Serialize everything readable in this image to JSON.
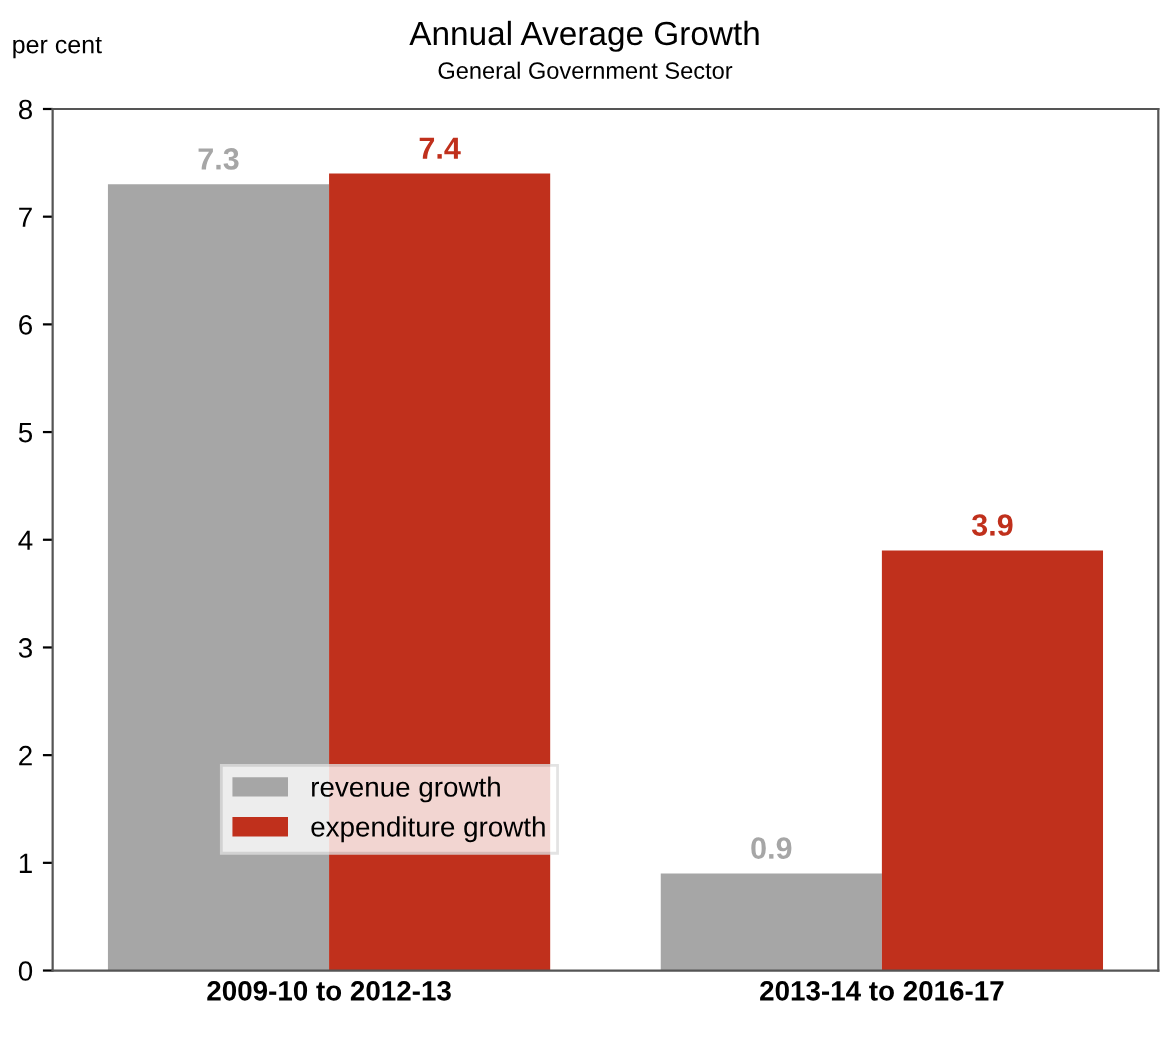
{
  "chart_data": {
    "type": "bar",
    "title": "Annual Average Growth",
    "subtitle": "General Government Sector",
    "ylabel": "per cent",
    "categories": [
      "2009-10 to 2012-13",
      "2013-14 to 2016-17"
    ],
    "series": [
      {
        "name": "revenue growth",
        "color": "#a6a6a6",
        "values": [
          7.3,
          0.9
        ]
      },
      {
        "name": "expenditure growth",
        "color": "#c0301c",
        "values": [
          7.4,
          3.9
        ]
      }
    ],
    "ylim": [
      0,
      8
    ],
    "yticks": [
      0,
      1,
      2,
      3,
      4,
      5,
      6,
      7,
      8
    ],
    "grid": false,
    "legend": "bottom left",
    "data_labels": true
  }
}
